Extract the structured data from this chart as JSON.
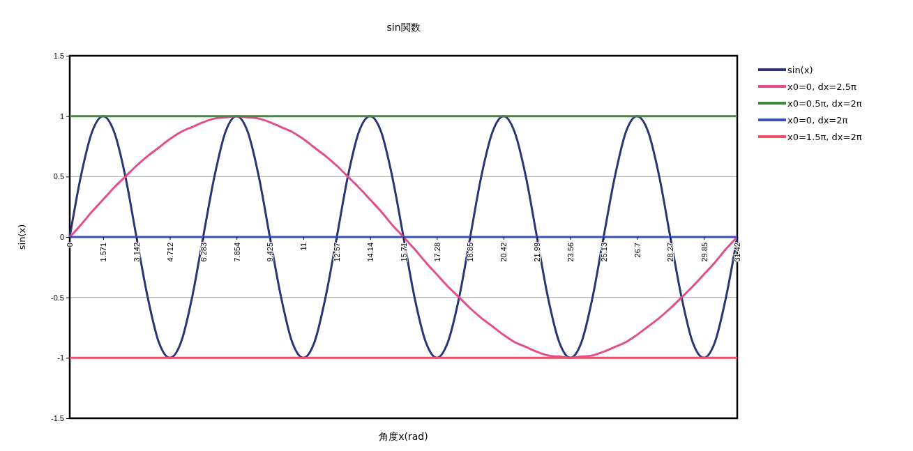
{
  "chart_data": {
    "type": "line",
    "title": "sin関数",
    "xlabel": "角度x(rad)",
    "ylabel": "sin(x)",
    "x": [
      0,
      0.52,
      1.05,
      1.57,
      2.09,
      2.62,
      3.14,
      3.67,
      4.19,
      4.71,
      5.24,
      5.76,
      6.28,
      6.81,
      7.33,
      7.85,
      8.38,
      8.9,
      9.42,
      9.95,
      10.47,
      11,
      11.52,
      12.04,
      12.57,
      13.09,
      13.61,
      14.14,
      14.66,
      15.18,
      15.71,
      16.23,
      16.76,
      17.28,
      17.8,
      18.33,
      18.85,
      19.37,
      19.9,
      20.42,
      20.94,
      21.47,
      21.99,
      22.51,
      23.04,
      23.56,
      24.09,
      24.61,
      25.13,
      25.66,
      26.18,
      26.7,
      27.23,
      27.75,
      28.27,
      28.8,
      29.32,
      29.85,
      30.37,
      30.89,
      31.42
    ],
    "series": [
      {
        "name": "sin(x)",
        "color": "#2b3475",
        "values": [
          0,
          0.5,
          0.87,
          1,
          0.87,
          0.5,
          0,
          -0.5,
          -0.87,
          -1,
          -0.87,
          -0.5,
          0,
          0.5,
          0.87,
          1,
          0.87,
          0.5,
          0,
          -0.5,
          -0.87,
          -1,
          -0.87,
          -0.5,
          0,
          0.5,
          0.87,
          1,
          0.87,
          0.5,
          0,
          -0.5,
          -0.87,
          -1,
          -0.87,
          -0.5,
          0,
          0.5,
          0.87,
          1,
          0.87,
          0.5,
          0,
          -0.5,
          -0.87,
          -1,
          -0.87,
          -0.5,
          0,
          0.5,
          0.87,
          1,
          0.87,
          0.5,
          0,
          -0.5,
          -0.87,
          -1,
          -0.87,
          -0.5,
          0
        ]
      },
      {
        "name": "x0=0, dx=2.5π",
        "color": "#e34d8c",
        "values": [
          0,
          0.1,
          0.21,
          0.31,
          0.41,
          0.5,
          0.59,
          0.67,
          0.74,
          0.81,
          0.87,
          0.91,
          0.95,
          0.98,
          0.99,
          1,
          0.99,
          0.98,
          0.95,
          0.91,
          0.87,
          0.81,
          0.74,
          0.67,
          0.59,
          0.5,
          0.41,
          0.31,
          0.21,
          0.1,
          0,
          -0.1,
          -0.21,
          -0.31,
          -0.41,
          -0.5,
          -0.59,
          -0.67,
          -0.74,
          -0.81,
          -0.87,
          -0.91,
          -0.95,
          -0.98,
          -0.99,
          -1,
          -0.99,
          -0.98,
          -0.95,
          -0.91,
          -0.87,
          -0.81,
          -0.74,
          -0.67,
          -0.59,
          -0.5,
          -0.41,
          -0.31,
          -0.21,
          -0.1,
          0
        ]
      },
      {
        "name": "x0=0.5π, dx=2π",
        "color": "#3f8a3c",
        "values": [
          1,
          1,
          1,
          1,
          1,
          1,
          1,
          1,
          1,
          1,
          1,
          1,
          1,
          1,
          1,
          1,
          1,
          1,
          1,
          1,
          1,
          1,
          1,
          1,
          1,
          1,
          1,
          1,
          1,
          1,
          1,
          1,
          1,
          1,
          1,
          1,
          1,
          1,
          1,
          1,
          1,
          1,
          1,
          1,
          1,
          1,
          1,
          1,
          1,
          1,
          1,
          1,
          1,
          1,
          1,
          1,
          1,
          1,
          1,
          1,
          1
        ]
      },
      {
        "name": "x0=0, dx=2π",
        "color": "#3a4fbf",
        "values": [
          0,
          0,
          0,
          0,
          0,
          0,
          0,
          0,
          0,
          0,
          0,
          0,
          0,
          0,
          0,
          0,
          0,
          0,
          0,
          0,
          0,
          0,
          0,
          0,
          0,
          0,
          0,
          0,
          0,
          0,
          0,
          0,
          0,
          0,
          0,
          0,
          0,
          0,
          0,
          0,
          0,
          0,
          0,
          0,
          0,
          0,
          0,
          0,
          0,
          0,
          0,
          0,
          0,
          0,
          0,
          0,
          0,
          0,
          0,
          0,
          0
        ]
      },
      {
        "name": "x0=1.5π, dx=2π",
        "color": "#ee4f6a",
        "values": [
          -1,
          -1,
          -1,
          -1,
          -1,
          -1,
          -1,
          -1,
          -1,
          -1,
          -1,
          -1,
          -1,
          -1,
          -1,
          -1,
          -1,
          -1,
          -1,
          -1,
          -1,
          -1,
          -1,
          -1,
          -1,
          -1,
          -1,
          -1,
          -1,
          -1,
          -1,
          -1,
          -1,
          -1,
          -1,
          -1,
          -1,
          -1,
          -1,
          -1,
          -1,
          -1,
          -1,
          -1,
          -1,
          -1,
          -1,
          -1,
          -1,
          -1,
          -1,
          -1,
          -1,
          -1,
          -1,
          -1,
          -1,
          -1,
          -1,
          -1,
          -1
        ]
      }
    ],
    "xlim": [
      0,
      31.42
    ],
    "xticks": [
      0,
      1.571,
      3.142,
      4.712,
      6.283,
      7.854,
      9.425,
      11,
      12.57,
      14.14,
      15.71,
      17.28,
      18.85,
      20.42,
      21.99,
      23.56,
      25.13,
      26.7,
      28.27,
      29.85,
      31.42
    ],
    "ylim": [
      -1.5,
      1.5
    ],
    "yticks": [
      -1.5,
      -1,
      -0.5,
      0,
      0.5,
      1,
      1.5
    ],
    "grid": "y",
    "legend": "right",
    "marker": "none",
    "line_style": "solid"
  }
}
